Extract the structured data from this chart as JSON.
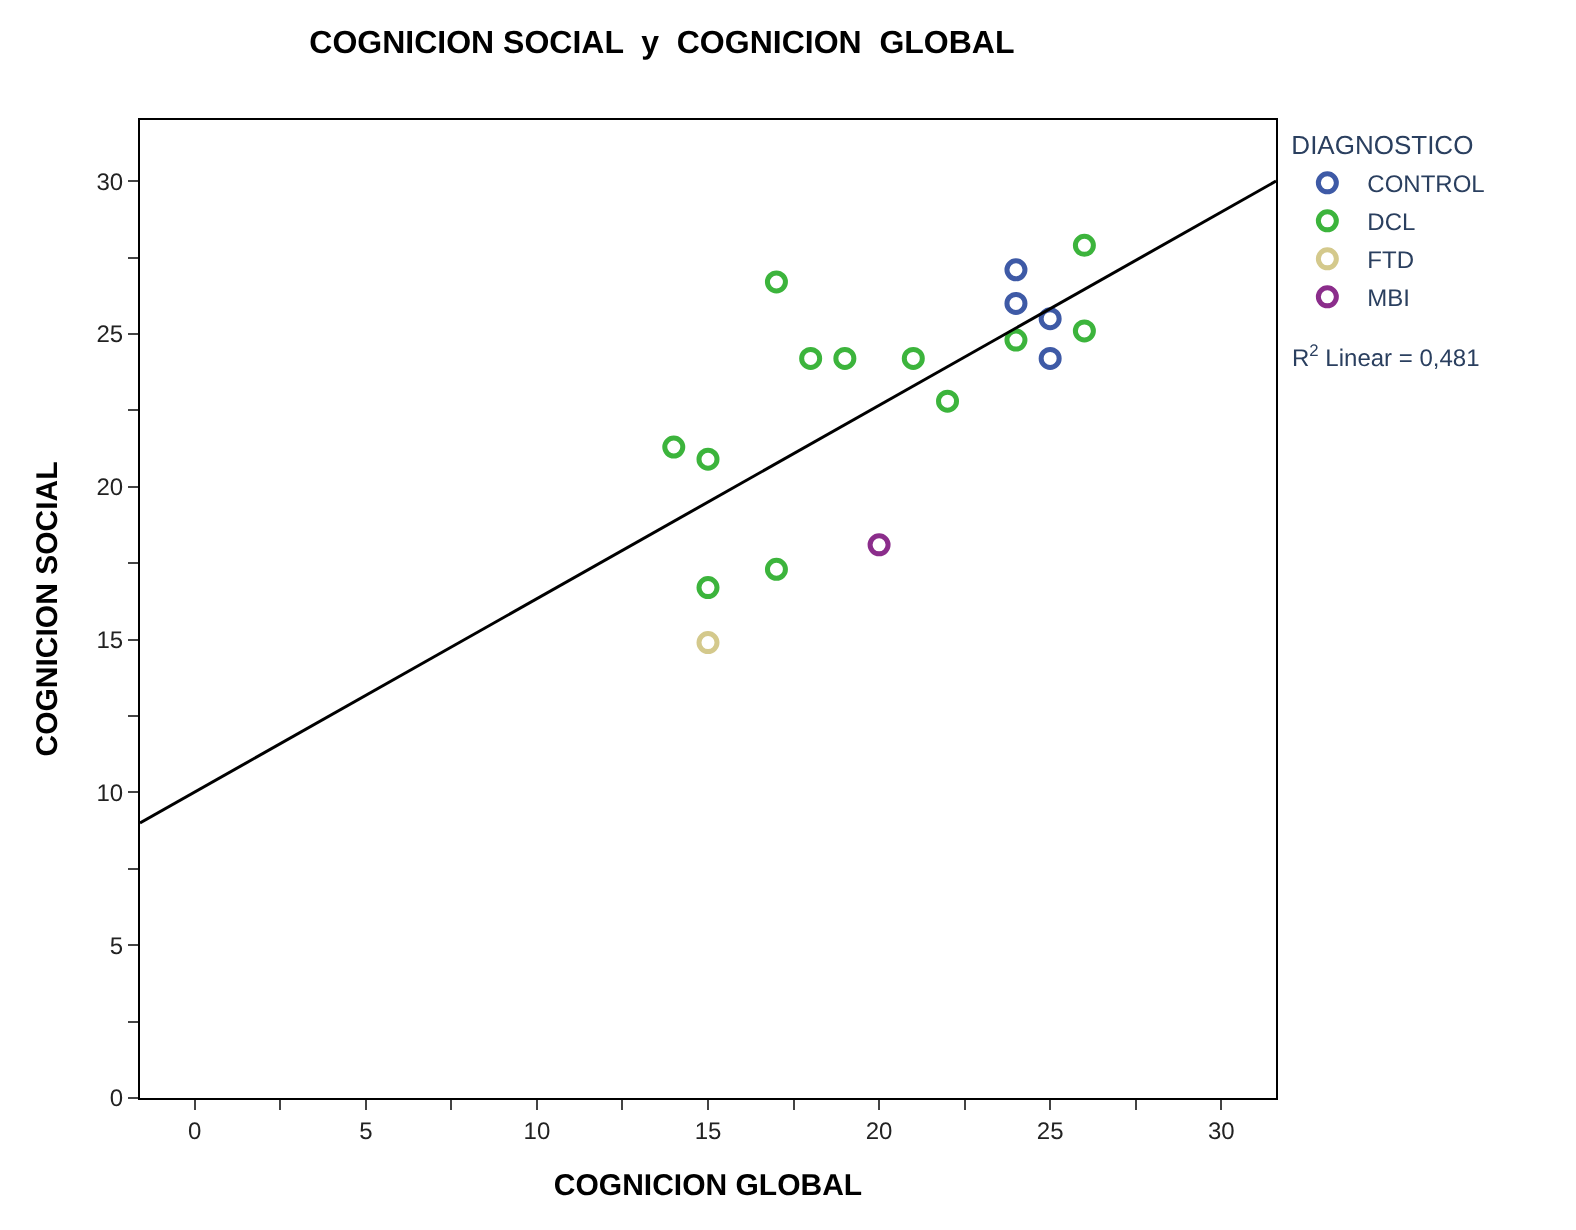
{
  "chart_data": {
    "type": "scatter",
    "title": "COGNICION SOCIAL  y  COGNICION  GLOBAL",
    "xlabel": "COGNICION GLOBAL",
    "ylabel": "COGNICION SOCIAL",
    "legend_title": "DIAGNOSTICO",
    "series": [
      {
        "name": "CONTROL",
        "color": "#3e5aa6",
        "x": [
          24,
          24,
          25,
          25
        ],
        "values": [
          27.1,
          26.0,
          25.5,
          24.2
        ]
      },
      {
        "name": "DCL",
        "color": "#3cb43c",
        "x": [
          26,
          26,
          24,
          17,
          18,
          19,
          21,
          22,
          14,
          15,
          15,
          17
        ],
        "values": [
          27.9,
          25.1,
          24.8,
          26.7,
          24.2,
          24.2,
          24.2,
          22.8,
          21.3,
          20.9,
          16.7,
          17.3
        ]
      },
      {
        "name": "FTD",
        "color": "#d4c98c",
        "x": [
          15
        ],
        "values": [
          14.9
        ]
      },
      {
        "name": "MBI",
        "color": "#8b2d8b",
        "x": [
          20
        ],
        "values": [
          18.1
        ]
      },
      {
        "type": "line",
        "marker": "none",
        "color": "#000000",
        "x": [
          -1.6,
          31.6
        ],
        "values": [
          9.0,
          30.0
        ]
      }
    ],
    "annotations": [
      "R$^{2}$ Linear = 0,481"
    ],
    "xlim": [
      -1.6,
      31.6
    ],
    "ylim": [
      0,
      32
    ],
    "xticks": [
      0,
      {
        "value": 2.5,
        "label": null
      },
      5,
      {
        "value": 7.5,
        "label": null
      },
      10,
      {
        "value": 12.5,
        "label": null
      },
      15,
      {
        "value": 17.5,
        "label": null
      },
      20,
      {
        "value": 22.5,
        "label": null
      },
      25,
      {
        "value": 27.5,
        "label": null
      },
      30
    ],
    "yticks": [
      0,
      {
        "value": 2.5,
        "label": null
      },
      5,
      {
        "value": 7.5,
        "label": null
      },
      10,
      {
        "value": 12.5,
        "label": null
      },
      15,
      {
        "value": 17.5,
        "label": null
      },
      20,
      {
        "value": 22.5,
        "label": null
      },
      25,
      {
        "value": 27.5,
        "label": null
      },
      30
    ],
    "marker": "circle",
    "legend": "top right"
  }
}
